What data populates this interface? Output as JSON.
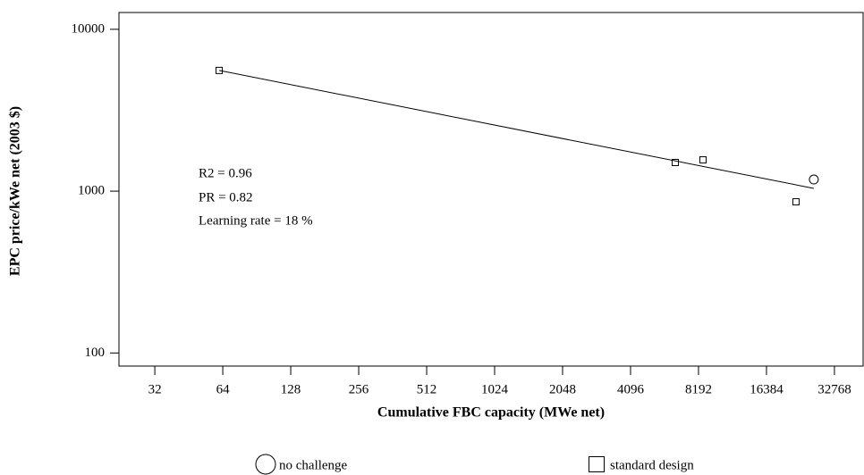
{
  "chart_data": {
    "type": "scatter",
    "x_label": "Cumulative FBC capacity (MWe net)",
    "y_label": "EPC price/kWe net (2003 $)",
    "xscale": "log2",
    "yscale": "log",
    "xlim": [
      22.2,
      43900
    ],
    "ylim": [
      83,
      12700
    ],
    "xticks": [
      32,
      64,
      128,
      256,
      512,
      1024,
      2048,
      4096,
      8192,
      16384,
      32768
    ],
    "yticks": [
      100,
      1000,
      10000
    ],
    "series": [
      {
        "name": "no challenge",
        "marker": "circle",
        "color": "#000000",
        "x": [
          26560
        ],
        "values": [
          1180
        ]
      },
      {
        "name": "standard design",
        "marker": "square",
        "color": "#000000",
        "x": [
          61.7,
          6464,
          8576,
          22135
        ],
        "values": [
          5570,
          1503,
          1560,
          859
        ]
      }
    ],
    "trend_line": {
      "x": [
        61.7,
        26560
      ],
      "y": [
        5570,
        1040
      ],
      "color": "#000000"
    },
    "annotations": [
      "R2 = 0.96",
      "PR = 0.82",
      "Learning rate = 18 %"
    ]
  }
}
